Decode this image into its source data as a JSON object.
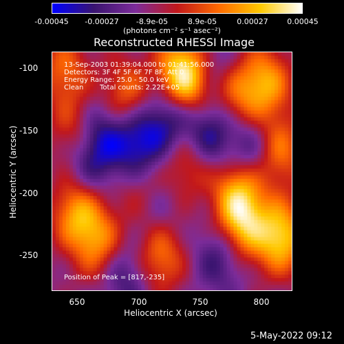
{
  "colorbar": {
    "tick_labels": [
      "-0.00045",
      "-0.00027",
      "-8.9e-05",
      "8.9e-05",
      "0.00027",
      "0.00045"
    ],
    "tick_values": [
      -0.00045,
      -0.00027,
      -8.9e-05,
      8.9e-05,
      0.00027,
      0.00045
    ],
    "unit_label": "(photons cm⁻² s⁻¹ asec⁻²)",
    "colors": [
      "#0000ff",
      "#3a1470",
      "#7d2c9a",
      "#c2181b",
      "#ff6a00",
      "#ffc800",
      "#ffffff"
    ]
  },
  "title": "Reconstructed RHESSI Image",
  "info": {
    "time_range": "13-Sep-2003 01:39:04.000 to 01:41:56.000",
    "detectors": "Detectors: 3F 4F 5F 6F 7F 8F, Att 0",
    "energy_range": "Energy Range: 25.0 - 50.0 keV",
    "algorithm": "Clean",
    "total_counts": "Total counts: 2.22E+05",
    "peak": "Position of Peak = [817,-235]"
  },
  "datestamp": "5-May-2022 09:12",
  "chart_data": {
    "type": "heatmap",
    "title": "Reconstructed RHESSI Image",
    "xlabel": "Heliocentric X (arcsec)",
    "ylabel": "Heliocentric Y (arcsec)",
    "xlim": [
      630,
      826
    ],
    "ylim": [
      -278,
      -85
    ],
    "x_ticks": [
      650,
      700,
      750,
      800
    ],
    "y_ticks": [
      -100,
      -150,
      -200,
      -250
    ],
    "colorbar_range": [
      -0.00045,
      0.00045
    ],
    "grid": false,
    "peak_position": [
      817,
      -235
    ],
    "bright_sources": [
      {
        "x": 640,
        "y": -100,
        "intensity": 0.25
      },
      {
        "x": 648,
        "y": -150,
        "intensity": 0.2
      },
      {
        "x": 650,
        "y": -215,
        "intensity": 0.35
      },
      {
        "x": 668,
        "y": -240,
        "intensity": 0.3
      },
      {
        "x": 690,
        "y": -120,
        "intensity": 0.28
      },
      {
        "x": 705,
        "y": -200,
        "intensity": 0.25
      },
      {
        "x": 718,
        "y": -250,
        "intensity": 0.3
      },
      {
        "x": 735,
        "y": -100,
        "intensity": 0.38
      },
      {
        "x": 745,
        "y": -110,
        "intensity": 0.3
      },
      {
        "x": 740,
        "y": -175,
        "intensity": 0.22
      },
      {
        "x": 780,
        "y": -120,
        "intensity": 0.26
      },
      {
        "x": 782,
        "y": -195,
        "intensity": 0.35
      },
      {
        "x": 785,
        "y": -225,
        "intensity": 0.4
      },
      {
        "x": 805,
        "y": -110,
        "intensity": 0.35
      },
      {
        "x": 815,
        "y": -165,
        "intensity": 0.3
      },
      {
        "x": 817,
        "y": -235,
        "intensity": 0.45
      }
    ],
    "dark_sources": [
      {
        "x": 660,
        "y": -175,
        "intensity": -0.2
      },
      {
        "x": 672,
        "y": -150,
        "intensity": -0.22
      },
      {
        "x": 700,
        "y": -160,
        "intensity": -0.3
      },
      {
        "x": 712,
        "y": -210,
        "intensity": -0.22
      },
      {
        "x": 725,
        "y": -140,
        "intensity": -0.25
      },
      {
        "x": 758,
        "y": -150,
        "intensity": -0.28
      },
      {
        "x": 768,
        "y": -250,
        "intensity": -0.22
      },
      {
        "x": 792,
        "y": -165,
        "intensity": -0.25
      },
      {
        "x": 760,
        "y": -100,
        "intensity": -0.2
      },
      {
        "x": 690,
        "y": -265,
        "intensity": -0.2
      }
    ]
  }
}
